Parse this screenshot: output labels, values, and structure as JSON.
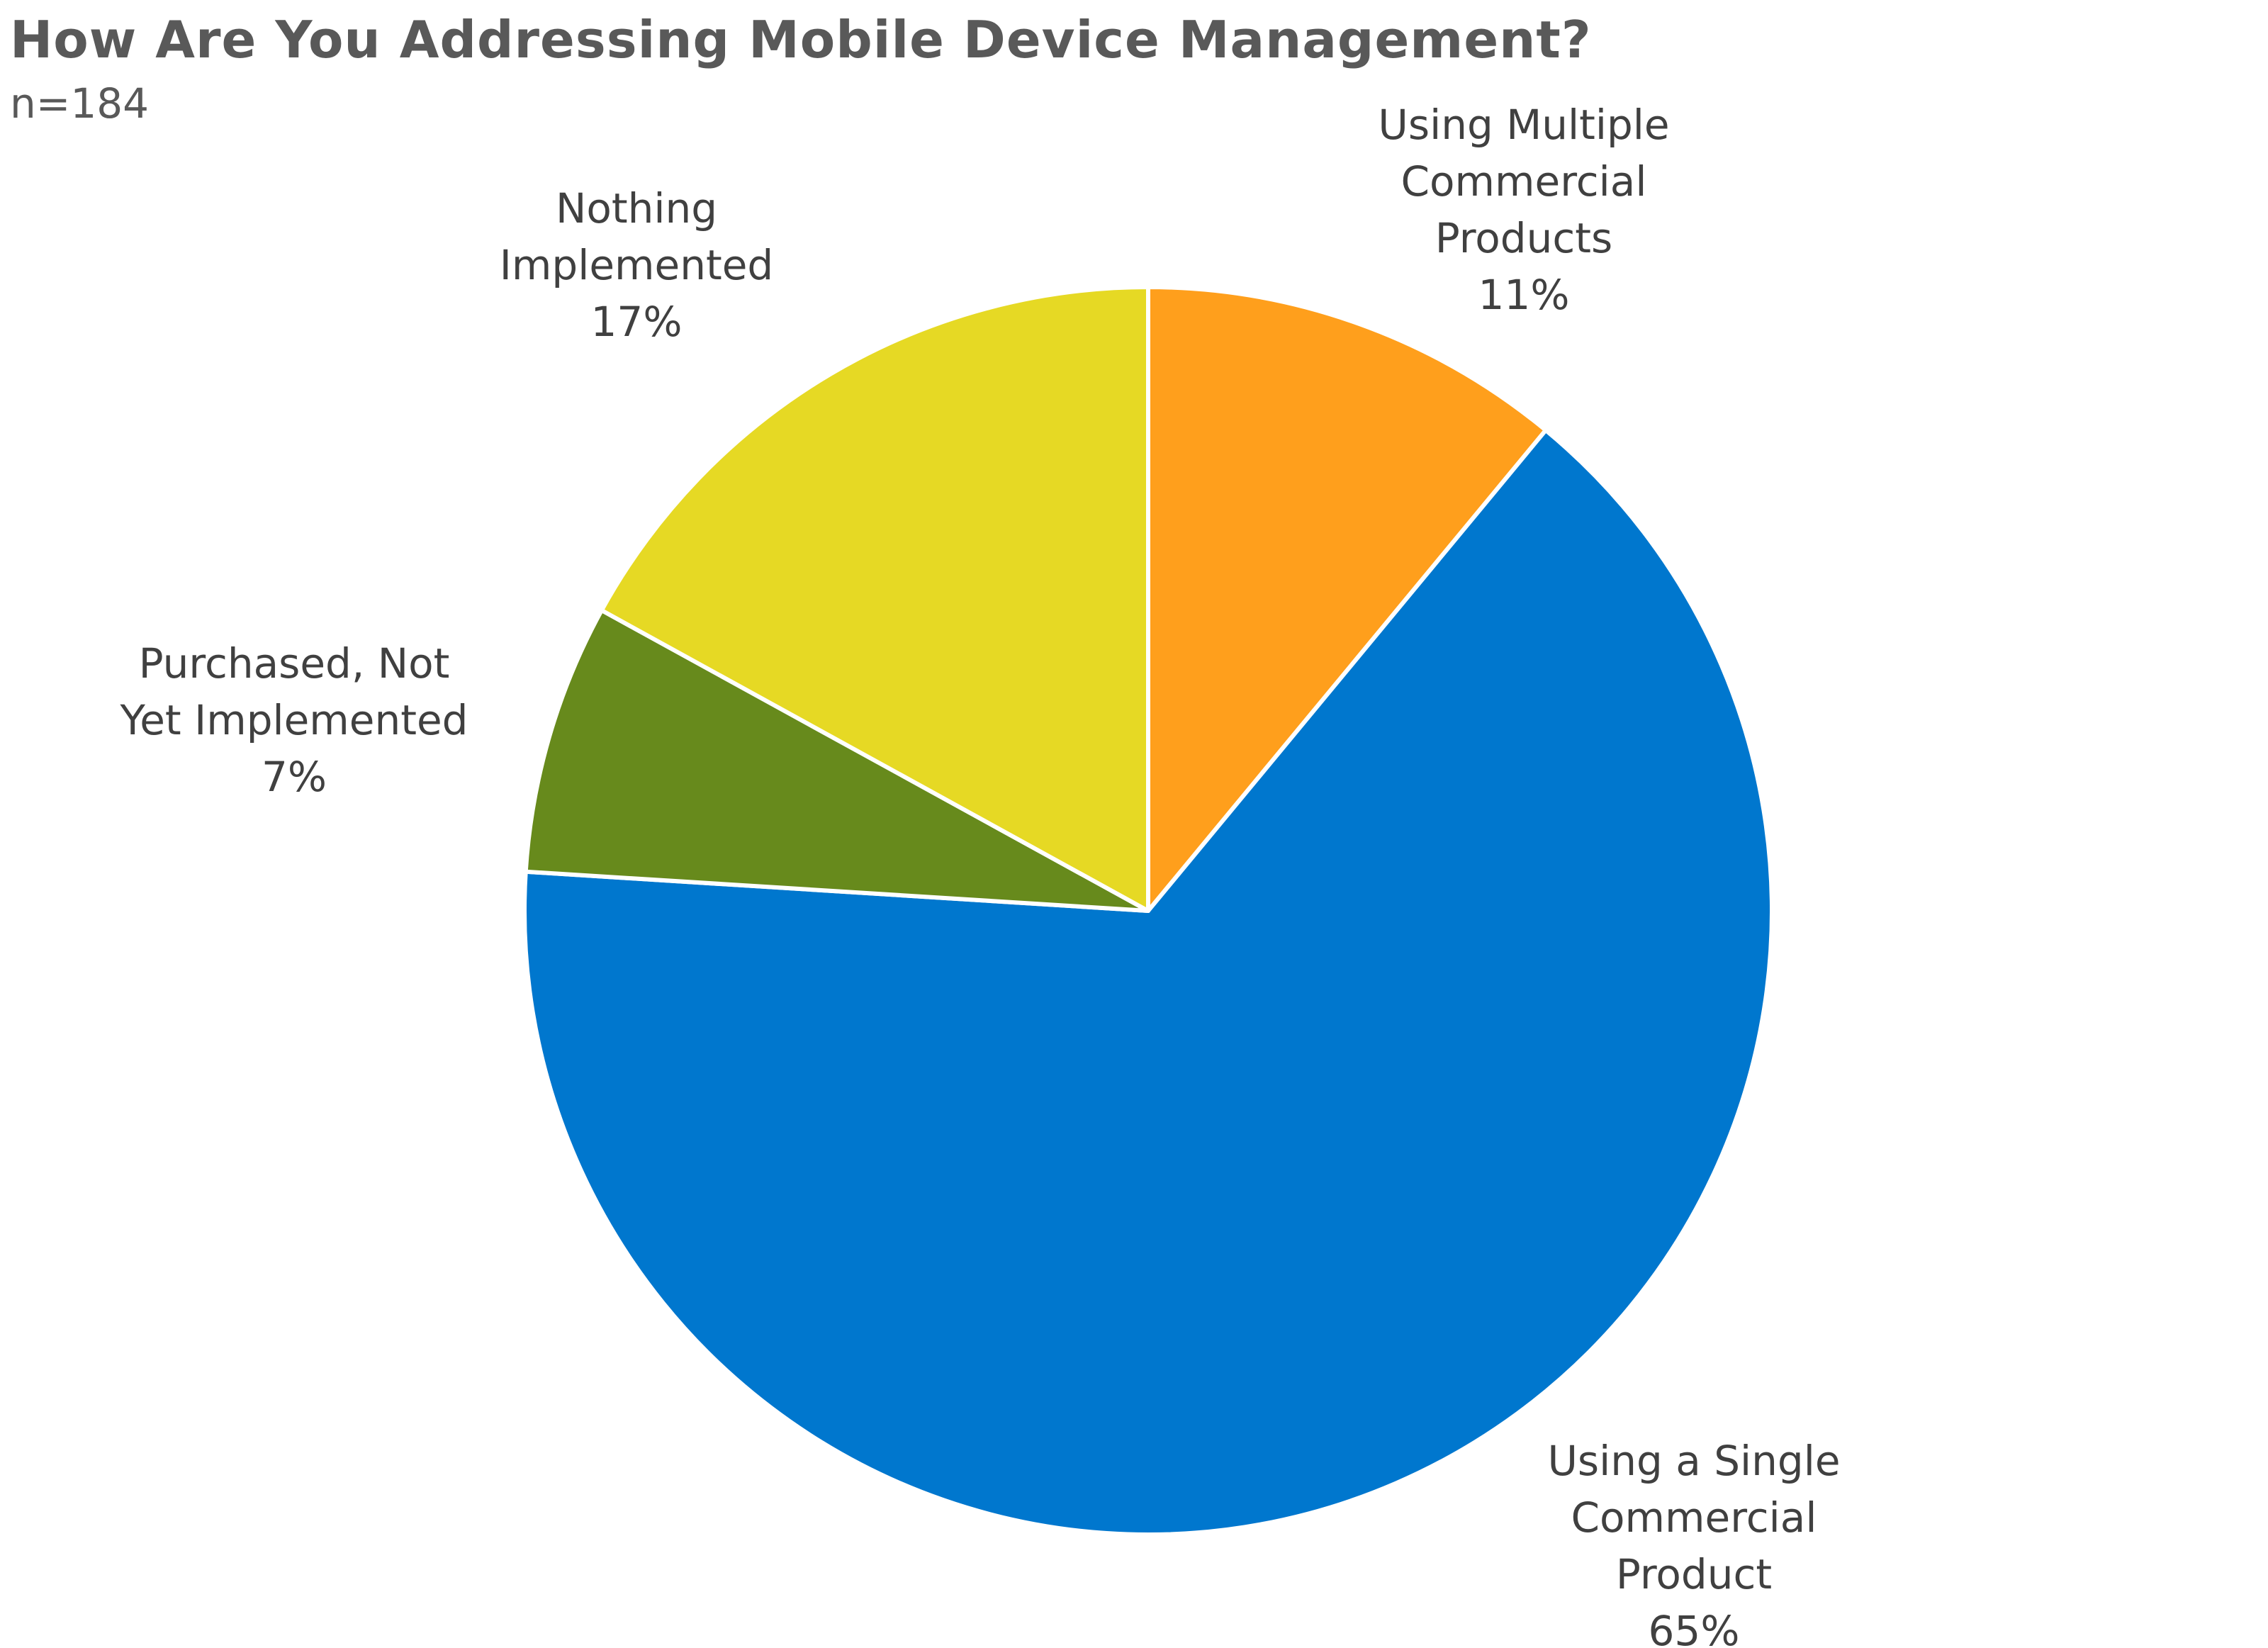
{
  "chart_data": {
    "type": "pie",
    "title": "How Are You Addressing Mobile Device Management?",
    "subtitle": "n=184",
    "slices": [
      {
        "label_lines": [
          "Using Multiple",
          "Commercial",
          "Products"
        ],
        "value": 11,
        "value_label": "11%",
        "color": "#FF9F1C"
      },
      {
        "label_lines": [
          "Using a Single",
          "Commercial",
          "Product"
        ],
        "value": 65,
        "value_label": "65%",
        "color": "#0077CE"
      },
      {
        "label_lines": [
          "Purchased, Not",
          "Yet Implemented"
        ],
        "value": 7,
        "value_label": "7%",
        "color": "#678A1C"
      },
      {
        "label_lines": [
          "Nothing",
          "Implemented"
        ],
        "value": 17,
        "value_label": "17%",
        "color": "#E6D924"
      }
    ],
    "start_angle": "12 o'clock",
    "direction": "clockwise",
    "legend": "none"
  }
}
